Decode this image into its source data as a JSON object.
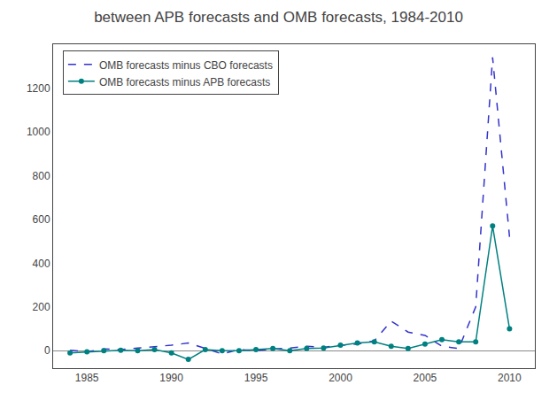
{
  "chart_data": {
    "type": "line",
    "title": "between APB forecasts and OMB forecasts, 1984-2010",
    "x": [
      1984,
      1985,
      1986,
      1987,
      1988,
      1989,
      1990,
      1991,
      1992,
      1993,
      1994,
      1995,
      1996,
      1997,
      1998,
      1999,
      2000,
      2001,
      2002,
      2003,
      2004,
      2005,
      2006,
      2007,
      2008,
      2009,
      2010
    ],
    "series": [
      {
        "name": "OMB forecasts minus CBO forecasts",
        "color": "#3333cc",
        "line_style": "dash",
        "values": [
          2,
          -5,
          8,
          5,
          12,
          18,
          25,
          35,
          10,
          -15,
          5,
          0,
          8,
          12,
          20,
          15,
          25,
          30,
          45,
          135,
          85,
          70,
          20,
          10,
          200,
          1340,
          520
        ]
      },
      {
        "name": "OMB forecasts minus APB forecasts",
        "color": "#008080",
        "line_style": "solid",
        "marker": "circle",
        "values": [
          -10,
          -5,
          0,
          2,
          0,
          5,
          -10,
          -40,
          5,
          0,
          0,
          5,
          10,
          0,
          10,
          12,
          25,
          35,
          40,
          20,
          10,
          30,
          50,
          40,
          40,
          570,
          100
        ]
      }
    ],
    "xlim": [
      1983.0,
      2011.5
    ],
    "ylim": [
      -80,
      1400
    ],
    "xticks": [
      1985,
      1990,
      1995,
      2000,
      2005,
      2010
    ],
    "yticks": [
      0,
      200,
      400,
      600,
      800,
      1000,
      1200
    ],
    "grid": false,
    "legend": "upper left"
  }
}
